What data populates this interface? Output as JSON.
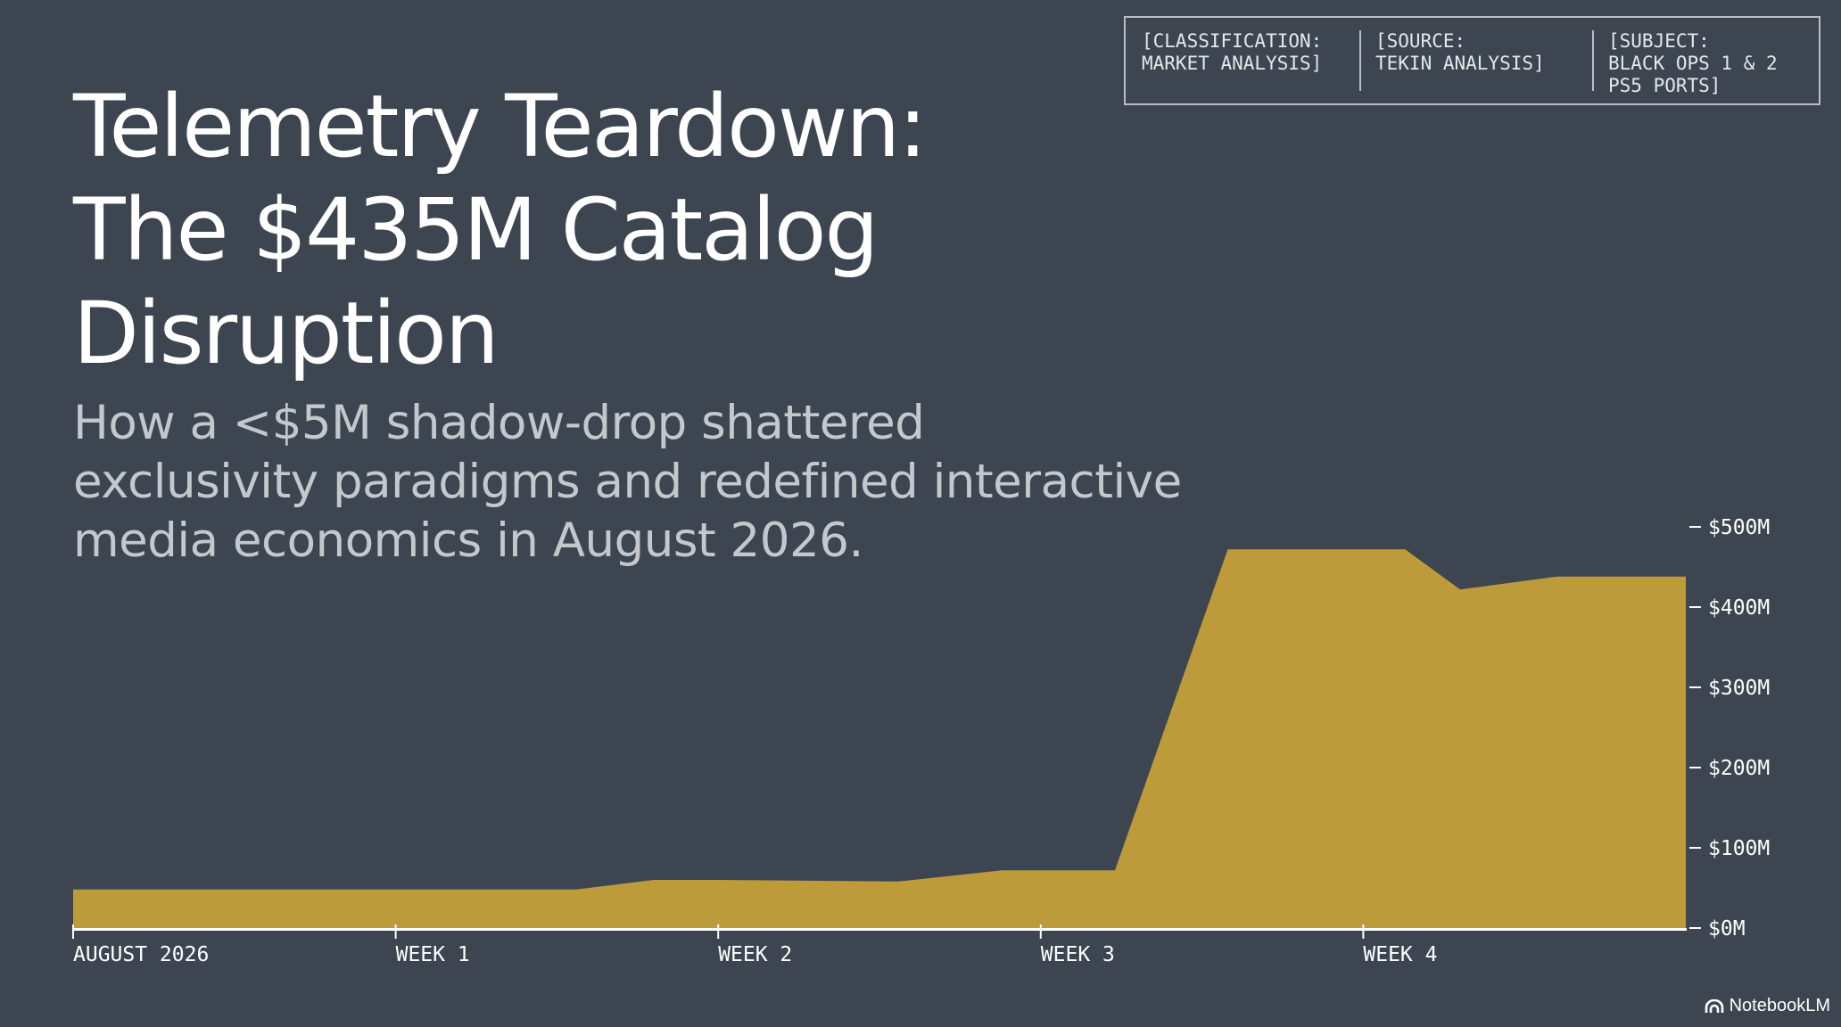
{
  "header": {
    "title_lines": [
      "Telemetry Teardown:",
      "The $435M Catalog",
      "Disruption"
    ],
    "subtitle_lines": [
      "How a <$5M shadow-drop shattered",
      "exclusivity paradigms and redefined interactive",
      "media economics in August 2026."
    ]
  },
  "meta": [
    {
      "lines": [
        "[CLASSIFICATION:",
        "MARKET ANALYSIS]"
      ]
    },
    {
      "lines": [
        "[SOURCE:",
        "TEKIN ANALYSIS]"
      ]
    },
    {
      "lines": [
        "[SUBJECT:",
        "BLACK OPS 1 & 2",
        "PS5 PORTS]"
      ]
    }
  ],
  "chart_data": {
    "type": "area",
    "x_tick_labels": [
      "AUGUST 2026",
      "WEEK 1",
      "WEEK 2",
      "WEEK 3",
      "WEEK 4"
    ],
    "x_ticks": [
      0,
      1,
      2,
      3,
      4
    ],
    "xlim": [
      0,
      5
    ],
    "y_tick_labels": [
      "$0M",
      "$100M",
      "$200M",
      "$300M",
      "$400M",
      "$500M"
    ],
    "y_ticks": [
      0,
      100,
      200,
      300,
      400,
      500
    ],
    "ylim": [
      0,
      500
    ],
    "y_axis_position": "right",
    "series": [
      {
        "points": [
          [
            0.0,
            48
          ],
          [
            1.0,
            48
          ],
          [
            1.56,
            48
          ],
          [
            1.8,
            60
          ],
          [
            2.0,
            60
          ],
          [
            2.56,
            58
          ],
          [
            2.88,
            72
          ],
          [
            3.0,
            72
          ],
          [
            3.23,
            72
          ],
          [
            3.58,
            472
          ],
          [
            4.0,
            472
          ],
          [
            4.13,
            472
          ],
          [
            4.3,
            422
          ],
          [
            4.6,
            438
          ],
          [
            5.0,
            438
          ]
        ]
      }
    ],
    "colors": {
      "fill": "#bd9b3b",
      "axis": "#ffffff"
    },
    "grid": false
  },
  "footer": {
    "brand": "NotebookLM",
    "brand_icon": "notebooklm-logo-icon"
  }
}
